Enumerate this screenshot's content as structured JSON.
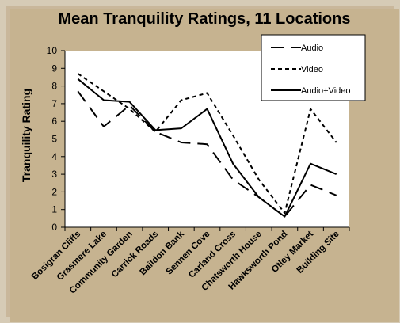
{
  "chart_data": {
    "type": "line",
    "title": "Mean Tranquility Ratings, 11 Locations",
    "xlabel": "",
    "ylabel": "Tranquility Rating",
    "ylim": [
      0,
      10
    ],
    "yticks": [
      0,
      1,
      2,
      3,
      4,
      5,
      6,
      7,
      8,
      9,
      10
    ],
    "grid": false,
    "legend_position": "top-right",
    "categories": [
      "Bosigran Cliffs",
      "Grasmere Lake",
      "Community Garden",
      "Carrick Roads",
      "Baildon Bank",
      "Sennen Cove",
      "Carland Cross",
      "Chatsworth House",
      "Hawksworth Pond",
      "Otley Market",
      "Building Site"
    ],
    "series": [
      {
        "name": "Audio",
        "dash": "long-dash",
        "values": [
          7.7,
          5.7,
          6.9,
          5.4,
          4.8,
          4.7,
          2.7,
          1.7,
          0.6,
          2.4,
          1.8
        ]
      },
      {
        "name": "Video",
        "dash": "short-dash",
        "values": [
          8.7,
          7.7,
          6.7,
          5.4,
          7.2,
          7.6,
          5.2,
          2.7,
          0.8,
          6.7,
          4.8
        ]
      },
      {
        "name": "Audio+Video",
        "dash": "solid",
        "values": [
          8.4,
          7.2,
          7.1,
          5.5,
          5.6,
          6.7,
          3.6,
          1.7,
          0.6,
          3.6,
          3.0
        ]
      }
    ],
    "colors": {
      "line": "#000000",
      "plot_background": "#ffffff",
      "frame": "#c6b390"
    }
  }
}
